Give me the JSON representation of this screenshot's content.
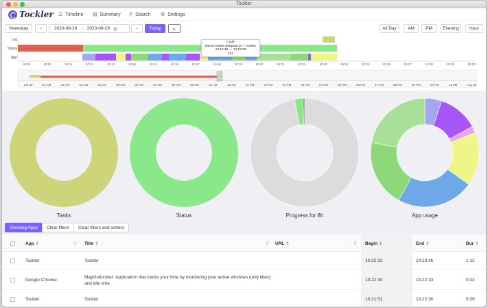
{
  "window": {
    "title": "Tockler"
  },
  "nav": {
    "brand": "Tockler",
    "items": [
      {
        "label": "Timeline",
        "icon": "timeline-icon"
      },
      {
        "label": "Summary",
        "icon": "chart-icon"
      },
      {
        "label": "Search",
        "icon": "search-icon"
      },
      {
        "label": "Settings",
        "icon": "gear-icon"
      }
    ]
  },
  "controls": {
    "yesterday": "Yesterday",
    "prev": "‹",
    "start_date": "2020-08-29",
    "separator": "→",
    "end_date": "2020-08-29",
    "next": "›",
    "today": "Today",
    "play": "▸",
    "ranges": [
      "All Day",
      "AM",
      "PM",
      "Evening",
      "Hour"
    ]
  },
  "timeline": {
    "lanes": [
      "Log",
      "Status",
      "App"
    ],
    "ticks": [
      "10:09",
      "10:10",
      "10:11",
      "10:12",
      "10:13",
      "10:14",
      "10:15",
      "10:16",
      "10:17",
      "10:18",
      "10:19",
      "10:20",
      "10:21",
      "10:22",
      "10:23",
      "10:24",
      "10:25",
      "10:26",
      "10:27",
      "10:28",
      "10:29",
      "10:30"
    ],
    "tooltip": {
      "line1": "Code",
      "line2": "theme.loader.webpack.js — tockler",
      "line3": "10:18:45 — 10:19:06",
      "line4": "21s"
    },
    "overview_ticks": [
      "Sat 29",
      "01 AM",
      "02 AM",
      "03 AM",
      "04 AM",
      "05 AM",
      "06 AM",
      "07 AM",
      "08 AM",
      "09 AM",
      "10 AM",
      "11 AM",
      "12 PM",
      "01 PM",
      "02 PM",
      "03 PM",
      "04 PM",
      "05 PM",
      "06 PM",
      "07 PM",
      "08 PM",
      "09 PM",
      "10 PM",
      "11 PM",
      "Aug 30"
    ]
  },
  "donuts": [
    {
      "label": "Tasks",
      "slices": [
        {
          "value": 100,
          "color": "#cdd47a"
        }
      ]
    },
    {
      "label": "Status",
      "slices": [
        {
          "value": 100,
          "color": "#8ae88a"
        }
      ]
    },
    {
      "label": "Progress for 8h",
      "slices": [
        {
          "value": 97,
          "color": "#dcdcdc"
        },
        {
          "value": 2.5,
          "color": "#8ae88a"
        },
        {
          "value": 0.5,
          "color": "#7a9a7a"
        }
      ]
    },
    {
      "label": "App usage",
      "slices": [
        {
          "value": 5,
          "color": "#a6a6f0"
        },
        {
          "value": 12,
          "color": "#a855f7"
        },
        {
          "value": 2,
          "color": "#f0a0f0"
        },
        {
          "value": 16,
          "color": "#f0f58a"
        },
        {
          "value": 23,
          "color": "#6fa8e8"
        },
        {
          "value": 20,
          "color": "#8ed87a"
        },
        {
          "value": 22,
          "color": "#a8e09a"
        }
      ]
    }
  ],
  "filters": {
    "showing_apps": "Showing Apps",
    "clear_filters": "Clear filters",
    "clear_all": "Clear filters and sorters"
  },
  "table": {
    "headers": {
      "app": "App",
      "title": "Title",
      "url": "URL",
      "begin": "Begin",
      "end": "End",
      "dur": "Dur"
    },
    "rows": [
      {
        "app": "Tockler",
        "title": "Tockler",
        "url": "",
        "begin": "10:22:33",
        "end": "10:23:45",
        "dur": "1:12"
      },
      {
        "app": "Google Chrome",
        "title": "MayGo/tockler: Application that tracks your time by monitoring your active windows (only titles) and idle time.",
        "url": "",
        "begin": "10:22:30",
        "end": "10:22:33",
        "dur": "0:03"
      },
      {
        "app": "Tockler",
        "title": "Tockler",
        "url": "",
        "begin": "10:21:51",
        "end": "10:22:30",
        "dur": "0:39"
      }
    ]
  },
  "colors": {
    "accent": "#7b61ff",
    "status_online": "#8ae88a",
    "status_offline": "#e06050",
    "log": "#cdd47a"
  }
}
